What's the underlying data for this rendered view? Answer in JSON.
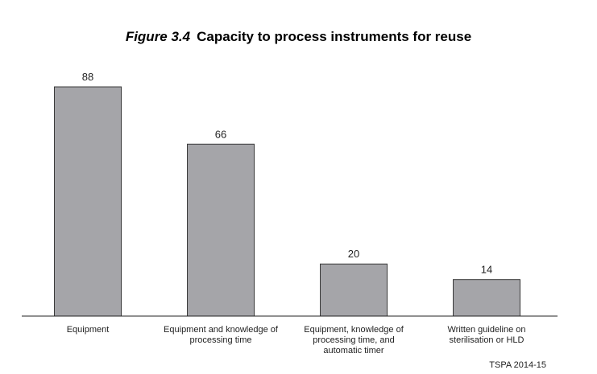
{
  "figure": {
    "label": "Figure 3.4",
    "title": "Capacity to process instruments for reuse"
  },
  "source": "TSPA 2014-15",
  "colors": {
    "bar_fill": "#a5a5a9",
    "bar_stroke": "#3a3a3a"
  },
  "chart_data": {
    "type": "bar",
    "title": "Capacity to process instruments for reuse",
    "xlabel": "",
    "ylabel": "",
    "categories": [
      [
        "Equipment"
      ],
      [
        "Equipment and knowledge of",
        "processing time"
      ],
      [
        "Equipment, knowledge of",
        "processing time, and",
        "automatic timer"
      ],
      [
        "Written guideline on",
        "sterilisation or HLD"
      ]
    ],
    "values": [
      88,
      66,
      20,
      14
    ],
    "ylim": [
      0,
      88
    ],
    "grid": false,
    "legend": "none"
  }
}
